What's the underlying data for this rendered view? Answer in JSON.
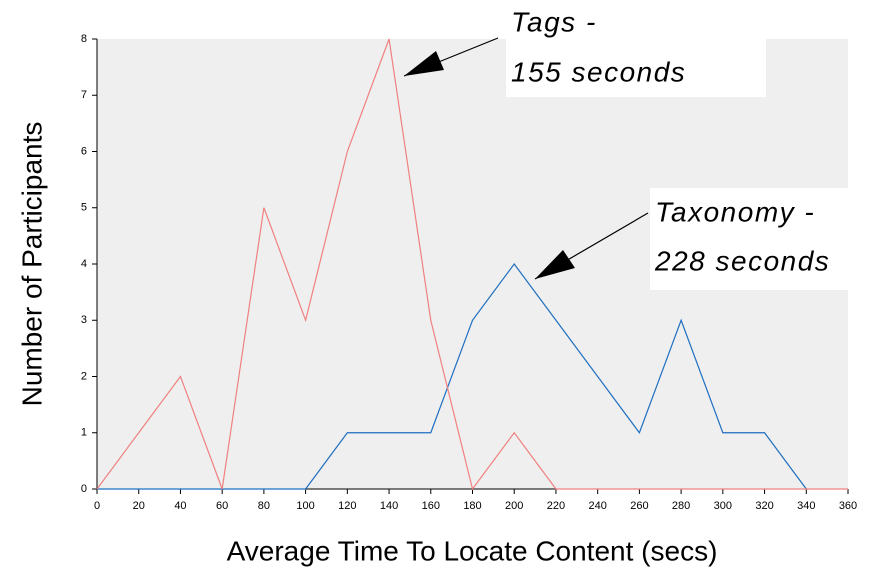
{
  "chart_data": {
    "type": "line",
    "x_label": "Average Time To Locate Content (secs)",
    "y_label": "Number of Participants",
    "x": [
      0,
      20,
      40,
      60,
      80,
      100,
      120,
      140,
      160,
      180,
      200,
      220,
      240,
      260,
      280,
      300,
      320,
      340,
      360
    ],
    "series": [
      {
        "name": "Tags",
        "color": "#f08080",
        "values": [
          0,
          1,
          2,
          0,
          5,
          3,
          6,
          8,
          3,
          0,
          1,
          0,
          0,
          0,
          0,
          0,
          0,
          0,
          0
        ]
      },
      {
        "name": "Taxonomy",
        "color": "#1f6fc0",
        "values": [
          0,
          0,
          0,
          0,
          0,
          0,
          1,
          1,
          1,
          3,
          4,
          3,
          2,
          1,
          3,
          1,
          1,
          0,
          null
        ]
      }
    ],
    "annotations": [
      [
        "Tags -",
        "155 seconds"
      ],
      [
        "Taxonomy -",
        "228 seconds"
      ]
    ],
    "xlim": [
      0,
      360
    ],
    "xticks": [
      0,
      20,
      40,
      60,
      80,
      100,
      120,
      140,
      160,
      180,
      200,
      220,
      240,
      260,
      280,
      300,
      320,
      340,
      360
    ],
    "ylim": [
      0,
      8
    ],
    "yticks": [
      0,
      1,
      2,
      3,
      4,
      5,
      6,
      7,
      8
    ],
    "plot_background": "#efefef"
  }
}
